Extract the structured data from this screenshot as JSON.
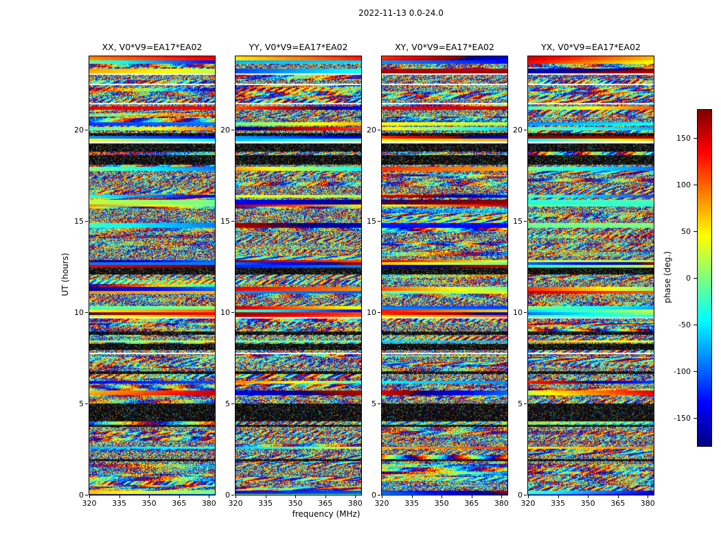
{
  "figure": {
    "title": "2022-11-13 0.0-24.0",
    "xlabel": "frequency (MHz)",
    "ylabel": "UT (hours)",
    "colorbar_label": "phase (deg.)"
  },
  "chart_data": {
    "type": "heatmap",
    "title": "2022-11-13 0.0-24.0",
    "xlabel": "frequency (MHz)",
    "ylabel": "UT (hours)",
    "panels": [
      {
        "label": "XX",
        "title": "XX, V0*V9=EA17*EA02"
      },
      {
        "label": "YY",
        "title": "YY, V0*V9=EA17*EA02"
      },
      {
        "label": "XY",
        "title": "XY, V0*V9=EA17*EA02"
      },
      {
        "label": "YX",
        "title": "YX, V0*V9=EA17*EA02"
      }
    ],
    "x_axis": {
      "label": "frequency (MHz)",
      "range": [
        320,
        383
      ],
      "ticks": [
        320,
        335,
        350,
        365,
        380
      ]
    },
    "y_axis": {
      "label": "UT (hours)",
      "range": [
        0,
        24
      ],
      "ticks": [
        0,
        5,
        10,
        15,
        20
      ]
    },
    "colorbar": {
      "label": "phase (deg.)",
      "range": [
        -180,
        180
      ],
      "ticks": [
        150,
        100,
        50,
        0,
        -50,
        -100,
        -150
      ],
      "colormap": "jet"
    },
    "values_note": "Each panel shows noise-like interferometric visibility phase (degrees, jet colormap) versus frequency (x) and UT time (y) for baseline V0*V9=EA17*EA02; horizontal white gaps and near-black bands mark flagged/low-signal time ranges, with occasional smooth coherent color bands."
  }
}
